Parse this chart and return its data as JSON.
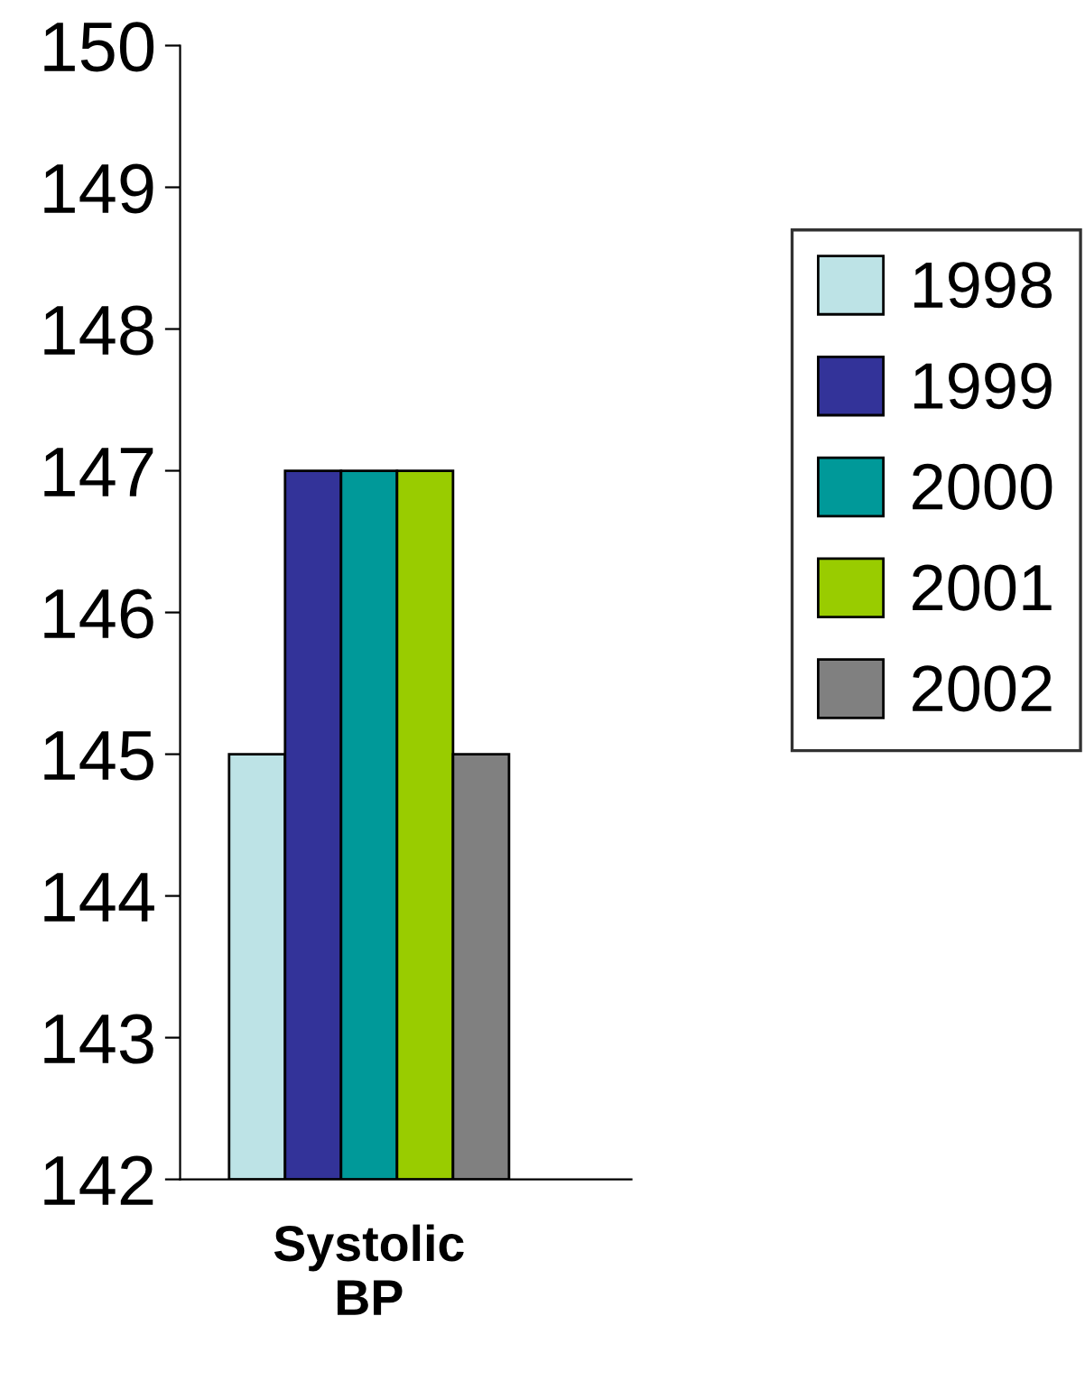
{
  "chart_data": {
    "type": "bar",
    "categories": [
      "Systolic\nBP"
    ],
    "series": [
      {
        "name": "1998",
        "color": "#bde3e6",
        "values": [
          145
        ]
      },
      {
        "name": "1999",
        "color": "#333399",
        "values": [
          147
        ]
      },
      {
        "name": "2000",
        "color": "#009999",
        "values": [
          147
        ]
      },
      {
        "name": "2001",
        "color": "#99cc00",
        "values": [
          147
        ]
      },
      {
        "name": "2002",
        "color": "#808080",
        "values": [
          145
        ]
      }
    ],
    "ylim": [
      142,
      150
    ],
    "yticks": [
      142,
      143,
      144,
      145,
      146,
      147,
      148,
      149,
      150
    ],
    "grid": false,
    "legend": "right"
  }
}
